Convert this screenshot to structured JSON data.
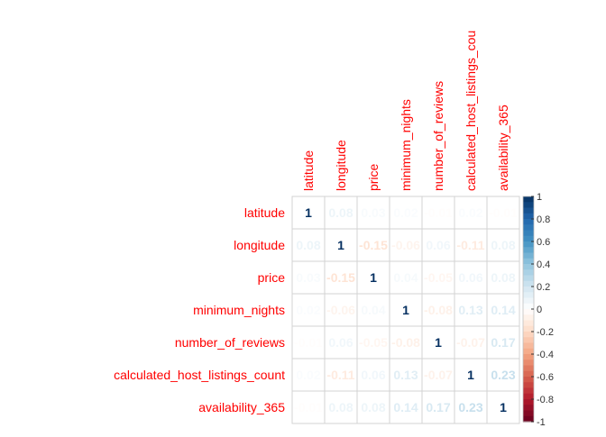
{
  "chart_data": {
    "type": "heatmap",
    "title": "",
    "variables": [
      "latitude",
      "longitude",
      "price",
      "minimum_nights",
      "number_of_reviews",
      "calculated_host_listings_count",
      "availability_365"
    ],
    "column_labels": [
      "latitude",
      "longitude",
      "price",
      "minimum_nights",
      "number_of_reviews",
      "calculated_host_listings_cou",
      "availability_365"
    ],
    "matrix": [
      [
        1,
        0.08,
        0.03,
        0.02,
        -0.01,
        0.02,
        -0.01
      ],
      [
        0.08,
        1,
        -0.15,
        -0.06,
        0.06,
        -0.11,
        0.08
      ],
      [
        0.03,
        -0.15,
        1,
        0.04,
        -0.05,
        0.06,
        0.08
      ],
      [
        0.02,
        -0.06,
        0.04,
        1,
        -0.08,
        0.13,
        0.14
      ],
      [
        -0.01,
        0.06,
        -0.05,
        -0.08,
        1,
        -0.07,
        0.17
      ],
      [
        0.02,
        -0.11,
        0.06,
        0.13,
        -0.07,
        1,
        0.23
      ],
      [
        -0.01,
        0.08,
        0.08,
        0.14,
        0.17,
        0.23,
        1
      ]
    ],
    "value_labels": [
      [
        "1",
        "0.08",
        "0.03",
        "0.02",
        "-0.01",
        "0.02",
        "-0.01"
      ],
      [
        "0.08",
        "1",
        "-0.15",
        "-0.06",
        "0.06",
        "-0.11",
        "0.08"
      ],
      [
        "0.03",
        "-0.15",
        "1",
        "0.04",
        "-0.05",
        "0.06",
        "0.08"
      ],
      [
        "0.02",
        "-0.06",
        "0.04",
        "1",
        "-0.08",
        "0.13",
        "0.14"
      ],
      [
        "-0.01",
        "0.06",
        "-0.05",
        "-0.08",
        "1",
        "-0.07",
        "0.17"
      ],
      [
        "0.02",
        "-0.11",
        "0.06",
        "0.13",
        "-0.07",
        "1",
        "0.23"
      ],
      [
        "-0.01",
        "0.08",
        "0.08",
        "0.14",
        "0.17",
        "0.23",
        "1"
      ]
    ],
    "colorbar": {
      "range": [
        -1,
        1
      ],
      "tick_labels": [
        "1",
        "0.8",
        "0.6",
        "0.4",
        "0.2",
        "0",
        "-0.2",
        "-0.4",
        "-0.6",
        "-0.8",
        "-1"
      ],
      "tick_values": [
        1,
        0.8,
        0.6,
        0.4,
        0.2,
        0,
        -0.2,
        -0.4,
        -0.6,
        -0.8,
        -1
      ],
      "low_color": "#67001F",
      "mid_color": "#FFFFFF",
      "high_color": "#053061"
    },
    "label_color": "#FF0000",
    "grid": true
  }
}
